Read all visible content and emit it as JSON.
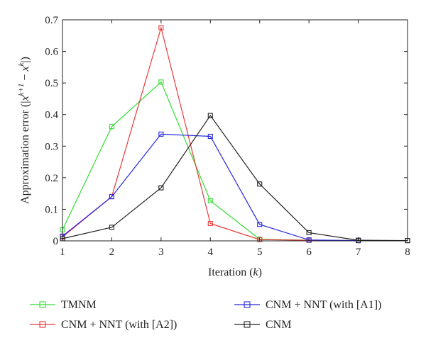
{
  "chart_data": {
    "type": "line",
    "title": "",
    "xlabel": "Iteration (k)",
    "xlabel_parts": {
      "main": "Iteration (",
      "var": "k",
      "tail": ")"
    },
    "ylabel": "Approximation error (|x^{k+1} − x^{k}|)",
    "ylabel_parts": {
      "main": "Approximation error (|",
      "x1": "x",
      "sup1": "k+1",
      "minus": " − ",
      "x2": "x",
      "sup2": "k",
      "tail": "|)"
    },
    "x": [
      1,
      2,
      3,
      4,
      5,
      6,
      7,
      8
    ],
    "xlim": [
      1,
      8
    ],
    "ylim": [
      0,
      0.7
    ],
    "xticks": [
      "1",
      "2",
      "3",
      "4",
      "5",
      "6",
      "7",
      "8"
    ],
    "yticks": [
      "0",
      "0.1",
      "0.2",
      "0.3",
      "0.4",
      "0.5",
      "0.6",
      "0.7"
    ],
    "grid": false,
    "legend_position": "below",
    "marker": "square",
    "series": [
      {
        "name": "TMNM",
        "color": "#33dd33",
        "values": [
          0.035,
          0.362,
          0.503,
          0.127,
          0.005,
          0.002,
          0.001,
          0.001
        ]
      },
      {
        "name": "CNM + NNT (with [A2])",
        "color": "#e83a3a",
        "values": [
          0.012,
          0.14,
          0.675,
          0.055,
          0.004,
          0.002,
          0.001,
          0.001
        ]
      },
      {
        "name": "CNM + NNT (with [A1])",
        "color": "#2626e0",
        "values": [
          0.015,
          0.14,
          0.338,
          0.331,
          0.052,
          0.003,
          0.001,
          0.001
        ]
      },
      {
        "name": "CNM",
        "color": "#222222",
        "values": [
          0.007,
          0.043,
          0.168,
          0.397,
          0.18,
          0.026,
          0.002,
          0.001
        ]
      }
    ]
  }
}
